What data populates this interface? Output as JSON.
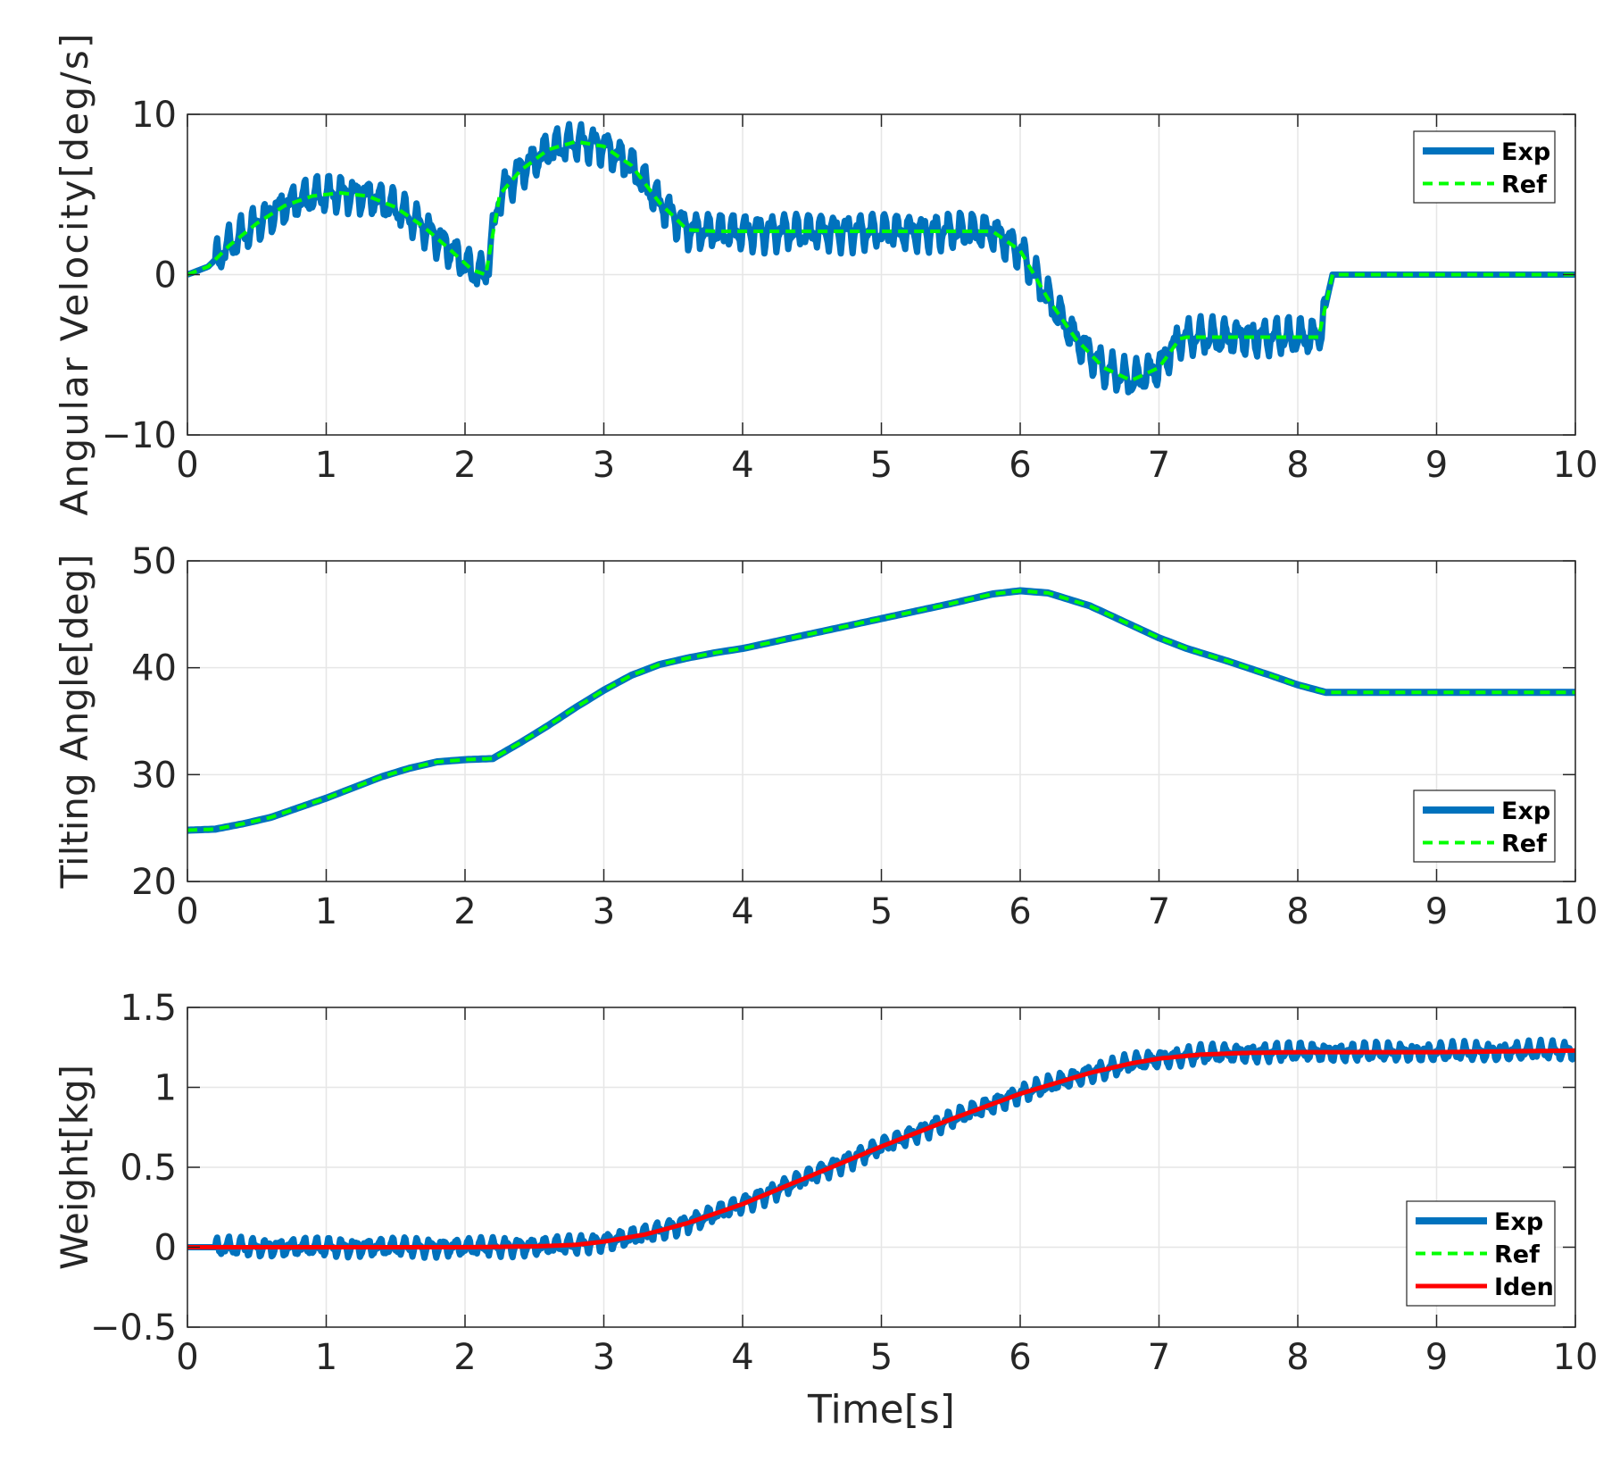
{
  "chart_data": [
    {
      "type": "line",
      "ylabel": "Angular Velocity[deg/s]",
      "xlabel": "",
      "xlim": [
        0,
        10
      ],
      "ylim": [
        -10,
        10
      ],
      "xticks": [
        0,
        1,
        2,
        3,
        4,
        5,
        6,
        7,
        8,
        9,
        10
      ],
      "yticks": [
        -10,
        0,
        10
      ],
      "xtick_labels": [
        "0",
        "1",
        "2",
        "3",
        "4",
        "5",
        "6",
        "7",
        "8",
        "9",
        "10"
      ],
      "ytick_labels": [
        "−10",
        "0",
        "10"
      ],
      "grid": true,
      "legend_position": "top-right",
      "series": [
        {
          "name": "Exp",
          "color": "#0072BD",
          "style": "solid",
          "noise": {
            "amplitude": 1.4,
            "until": 8.2
          }
        },
        {
          "name": "Ref",
          "color": "#00FF00",
          "style": "dashed",
          "x": [
            0,
            0.15,
            0.3,
            0.5,
            0.7,
            0.9,
            1.1,
            1.3,
            1.5,
            1.7,
            1.9,
            2.05,
            2.15,
            2.25,
            2.4,
            2.6,
            2.8,
            3.0,
            3.2,
            3.4,
            3.6,
            3.8,
            5.8,
            6.0,
            6.2,
            6.4,
            6.6,
            6.8,
            7.0,
            7.15,
            7.2,
            8.15,
            8.25,
            10
          ],
          "y": [
            0,
            0.5,
            1.8,
            3.2,
            4.3,
            4.9,
            5.1,
            4.9,
            4.2,
            3.0,
            1.5,
            0.3,
            0,
            5.0,
            6.5,
            7.8,
            8.3,
            8.0,
            6.8,
            4.5,
            2.8,
            2.7,
            2.7,
            1.5,
            -1.5,
            -4.0,
            -5.8,
            -6.6,
            -5.8,
            -4.0,
            -3.9,
            -3.9,
            0,
            0
          ]
        }
      ]
    },
    {
      "type": "line",
      "ylabel": "Tilting Angle[deg]",
      "xlabel": "",
      "xlim": [
        0,
        10
      ],
      "ylim": [
        20,
        50
      ],
      "xticks": [
        0,
        1,
        2,
        3,
        4,
        5,
        6,
        7,
        8,
        9,
        10
      ],
      "yticks": [
        20,
        30,
        40,
        50
      ],
      "xtick_labels": [
        "0",
        "1",
        "2",
        "3",
        "4",
        "5",
        "6",
        "7",
        "8",
        "9",
        "10"
      ],
      "ytick_labels": [
        "20",
        "30",
        "40",
        "50"
      ],
      "grid": true,
      "legend_position": "bottom-right",
      "series": [
        {
          "name": "Exp",
          "color": "#0072BD",
          "style": "solid",
          "x": [
            0,
            0.2,
            0.4,
            0.6,
            0.8,
            1.0,
            1.2,
            1.4,
            1.6,
            1.8,
            2.0,
            2.2,
            2.4,
            2.6,
            2.8,
            3.0,
            3.2,
            3.4,
            3.6,
            3.8,
            4.0,
            4.5,
            5.0,
            5.5,
            5.8,
            6.0,
            6.2,
            6.5,
            6.8,
            7.0,
            7.2,
            7.5,
            7.8,
            8.0,
            8.2,
            8.5,
            9.0,
            10
          ],
          "y": [
            24.8,
            24.9,
            25.4,
            26.0,
            26.9,
            27.8,
            28.8,
            29.8,
            30.6,
            31.2,
            31.4,
            31.5,
            33.0,
            34.6,
            36.3,
            37.9,
            39.3,
            40.3,
            40.9,
            41.4,
            41.8,
            43.2,
            44.6,
            46.0,
            46.9,
            47.2,
            47.0,
            45.8,
            44.0,
            42.8,
            41.8,
            40.6,
            39.3,
            38.4,
            37.7,
            37.7,
            37.7,
            37.7
          ]
        },
        {
          "name": "Ref",
          "color": "#00FF00",
          "style": "dashed"
        }
      ]
    },
    {
      "type": "line",
      "ylabel": "Weight[kg]",
      "xlabel": "Time[s]",
      "xlim": [
        0,
        10
      ],
      "ylim": [
        -0.5,
        1.5
      ],
      "xticks": [
        0,
        1,
        2,
        3,
        4,
        5,
        6,
        7,
        8,
        9,
        10
      ],
      "yticks": [
        -0.5,
        0,
        0.5,
        1,
        1.5
      ],
      "xtick_labels": [
        "0",
        "1",
        "2",
        "3",
        "4",
        "5",
        "6",
        "7",
        "8",
        "9",
        "10"
      ],
      "ytick_labels": [
        "−0.5",
        "0",
        "0.5",
        "1",
        "1.5"
      ],
      "grid": true,
      "legend_position": "bottom-right",
      "series": [
        {
          "name": "Exp",
          "color": "#0072BD",
          "style": "solid",
          "noise": {
            "amplitude": 0.07,
            "until": 10
          }
        },
        {
          "name": "Ref",
          "color": "#00FF00",
          "style": "dashed"
        },
        {
          "name": "Iden",
          "color": "#FF0000",
          "style": "solid",
          "x": [
            0,
            1,
            2,
            2.5,
            2.8,
            3.0,
            3.3,
            3.6,
            4.0,
            4.5,
            5.0,
            5.5,
            6.0,
            6.5,
            6.8,
            7.0,
            7.3,
            7.6,
            8.0,
            9.0,
            10
          ],
          "y": [
            0,
            0,
            0,
            0.005,
            0.015,
            0.035,
            0.08,
            0.15,
            0.27,
            0.45,
            0.63,
            0.8,
            0.96,
            1.09,
            1.15,
            1.18,
            1.205,
            1.215,
            1.22,
            1.22,
            1.23
          ]
        }
      ]
    }
  ]
}
